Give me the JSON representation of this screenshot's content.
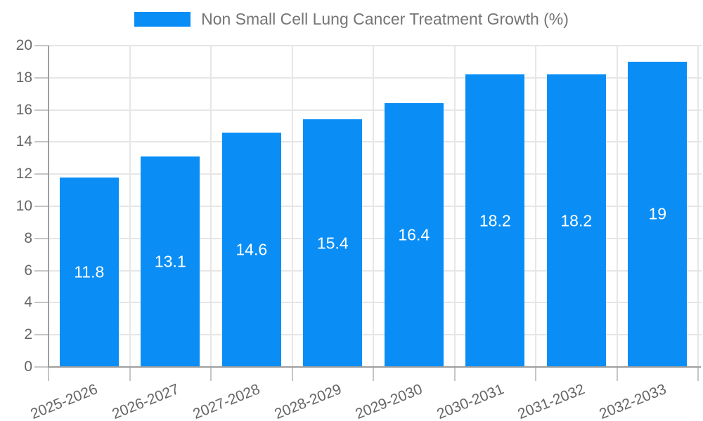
{
  "legend": {
    "label": "Non Small Cell Lung Cancer Treatment Growth (%)"
  },
  "colors": {
    "bar": "#0a8ef6",
    "grid": "#e6e6e6",
    "axis_line": "#9e9e9e",
    "tick": "#c6c6c6",
    "axis_text": "#666666",
    "legend_text": "#757575",
    "value_text": "#ffffff",
    "background": "#ffffff"
  },
  "chart_data": {
    "type": "bar",
    "title": "",
    "xlabel": "",
    "ylabel": "",
    "categories": [
      "2025-2026",
      "2026-2027",
      "2027-2028",
      "2028-2029",
      "2029-2030",
      "2030-2031",
      "2031-2032",
      "2032-2033"
    ],
    "series": [
      {
        "name": "Non Small Cell Lung Cancer Treatment Growth (%)",
        "values": [
          11.8,
          13.1,
          14.6,
          15.4,
          16.4,
          18.2,
          18.2,
          19
        ]
      }
    ],
    "value_labels": [
      "11.8",
      "13.1",
      "14.6",
      "15.4",
      "16.4",
      "18.2",
      "18.2",
      "19"
    ],
    "value_label_position": "inside-center",
    "ylim": [
      0,
      20
    ],
    "y_ticks": [
      "0",
      "2",
      "4",
      "6",
      "8",
      "10",
      "12",
      "14",
      "16",
      "18",
      "20"
    ],
    "grid": true,
    "legend_position": "top-center",
    "x_label_rotation_deg": -22
  }
}
